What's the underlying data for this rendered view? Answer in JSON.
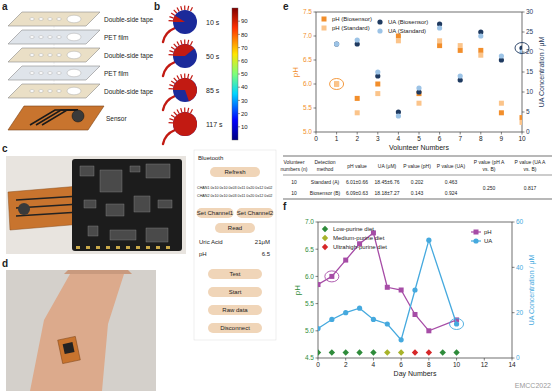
{
  "panel_a": {
    "label": "a",
    "layers": [
      "Double-side tape",
      "PET film",
      "Double-side tape",
      "PET film",
      "Double-side tape",
      "Sensor"
    ]
  },
  "panel_b": {
    "label": "b",
    "times": [
      "10 s",
      "50 s",
      "85 s",
      "117 s"
    ],
    "colorbar": {
      "range": [
        0,
        100
      ],
      "ticks": [
        90,
        80,
        70,
        60,
        50,
        40,
        30,
        20,
        10
      ]
    }
  },
  "panel_c": {
    "label": "c",
    "app": {
      "header": "Bluetooth",
      "refresh": "Refresh",
      "channels": [
        "CHAN1 0x10 0x10 0x03 0x11 0x20 0x12 0x02",
        "CHAN2 0x10 0x10 0x03 0x11 0x20 0x12 0x02"
      ],
      "set_buttons": [
        "Set Channel1",
        "Set Channel2"
      ],
      "read": "Read",
      "readings": [
        {
          "name": "Uric Acid",
          "value": "21μM"
        },
        {
          "name": "pH",
          "value": "6.5"
        }
      ],
      "actions": [
        "Test",
        "Start",
        "Raw data",
        "Disconnect"
      ]
    }
  },
  "panel_d": {
    "label": "d"
  },
  "table": {
    "header": [
      "Volunteer numbers (n)",
      "Detection method",
      "pH value",
      "UA (μM)",
      "P value (pH)",
      "P value (UA)",
      "P value (pH A vs. B)",
      "P value (UA A vs. B)"
    ],
    "rows": [
      [
        "10",
        "Standard (A)",
        "6.01±0.66",
        "18.45±6.76",
        "0.202",
        "0.463"
      ],
      [
        "10",
        "Biosensor (B)",
        "6.09±0.63",
        "18.18±7.27",
        "0.143",
        "0.924"
      ]
    ],
    "merged": [
      "0.250",
      "0.817"
    ]
  },
  "watermark": "EMCC2022",
  "chart_data": [
    {
      "type": "scatter",
      "panel_label": "e",
      "x_label": "Volunteer Numbers",
      "y_label": "pH",
      "y2_label": "UA Concentration / μM",
      "x": [
        1,
        2,
        3,
        4,
        5,
        6,
        7,
        8,
        9,
        10
      ],
      "xlim": [
        0,
        10
      ],
      "xticks": [
        0,
        1,
        2,
        3,
        4,
        5,
        6,
        7,
        8,
        9,
        10
      ],
      "ylim": [
        5.0,
        7.5
      ],
      "yticks": [
        {
          "value": 5.0,
          "label": "5.0"
        },
        {
          "value": 5.5,
          "label": "5.5"
        },
        {
          "value": 6.0,
          "label": "6.0"
        },
        {
          "value": 6.5,
          "label": "6.5"
        },
        {
          "value": 7.0,
          "label": "7.0"
        },
        {
          "value": 7.5,
          "label": "7.5"
        }
      ],
      "y2lim": [
        0,
        30
      ],
      "y2ticks": [
        0,
        5,
        10,
        15,
        20,
        25,
        30
      ],
      "legend": "upper center",
      "series": [
        {
          "name": "pH (Biosensor)",
          "color": "#f28e2b",
          "marker": "square",
          "line_style": "none",
          "values": [
            6.0,
            5.7,
            6.0,
            7.0,
            5.8,
            6.8,
            6.7,
            6.7,
            5.4,
            5.3
          ]
        },
        {
          "name": "pH (Standard)",
          "color": "#fbc48a",
          "marker": "square",
          "line_style": "none",
          "values": [
            6.0,
            5.4,
            5.8,
            6.9,
            5.6,
            6.9,
            6.8,
            6.6,
            5.6,
            5.2
          ]
        },
        {
          "name": "UA (Biosensor)",
          "color": "#1f3a60",
          "marker": "circle",
          "line_style": "none",
          "axis": "y2",
          "values": [
            22,
            22,
            14,
            5,
            10,
            27,
            13,
            25,
            18,
            21
          ]
        },
        {
          "name": "UA (Standard)",
          "color": "#9cc3e6",
          "marker": "circle",
          "line_style": "none",
          "axis": "y2",
          "values": [
            22,
            23,
            15,
            4,
            11,
            26,
            14,
            24,
            19,
            20
          ]
        }
      ]
    },
    {
      "type": "line",
      "panel_label": "f",
      "x_label": "Day Numbers",
      "y_label": "pH",
      "y2_label": "UA Concentration / μM",
      "xlim": [
        0,
        14
      ],
      "xticks": [
        0,
        2,
        4,
        6,
        8,
        10,
        12,
        14
      ],
      "ylim": [
        4.5,
        7.0
      ],
      "yticks": [
        {
          "value": 4.5,
          "label": "4.5"
        },
        {
          "value": 5.0,
          "label": "5.0"
        },
        {
          "value": 5.5,
          "label": "5.5"
        },
        {
          "value": 6.0,
          "label": "6.0"
        },
        {
          "value": 6.5,
          "label": "6.5"
        },
        {
          "value": 7.0,
          "label": "7.0"
        }
      ],
      "y2lim": [
        0,
        60
      ],
      "y2ticks": [
        0,
        20,
        40,
        60
      ],
      "legend": "upper left",
      "series": [
        {
          "name": "Low-purine diet",
          "type": "scatter",
          "color": "#2e8b3a",
          "marker": "diamond",
          "line_style": "none",
          "x": [
            0,
            1,
            2,
            3,
            4,
            9,
            10
          ],
          "values": [
            4.6,
            4.6,
            4.6,
            4.6,
            4.6,
            4.6,
            4.6
          ]
        },
        {
          "name": "Medium-purine diet",
          "type": "scatter",
          "color": "#a8b32a",
          "marker": "diamond",
          "line_style": "none",
          "x": [
            5,
            6
          ],
          "values": [
            4.6,
            4.6
          ]
        },
        {
          "name": "Ultrahigh-purine diet",
          "type": "scatter",
          "color": "#d62728",
          "marker": "diamond",
          "line_style": "none",
          "x": [
            7,
            8
          ],
          "values": [
            4.6,
            4.6
          ]
        },
        {
          "name": "pH",
          "type": "line",
          "color": "#a64ca6",
          "marker": "square",
          "line_style": "solid",
          "x": [
            0,
            1,
            2,
            3,
            4,
            5,
            6,
            7,
            8,
            10
          ],
          "values": [
            5.85,
            6.0,
            6.3,
            6.6,
            6.8,
            5.8,
            5.75,
            5.3,
            5.0,
            5.2
          ]
        },
        {
          "name": "UA",
          "type": "line",
          "color": "#45a9de",
          "marker": "circle",
          "line_style": "solid",
          "axis": "y2",
          "x": [
            0,
            1,
            2,
            3,
            4,
            5,
            6,
            7,
            8,
            10
          ],
          "values": [
            13,
            17,
            20,
            22,
            17,
            15,
            8,
            30,
            52,
            15
          ]
        }
      ]
    }
  ]
}
